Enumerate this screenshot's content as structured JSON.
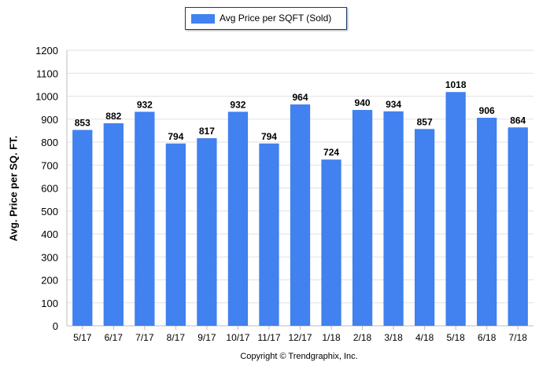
{
  "chart_data": {
    "type": "bar",
    "categories": [
      "5/17",
      "6/17",
      "7/17",
      "8/17",
      "9/17",
      "10/17",
      "11/17",
      "12/17",
      "1/18",
      "2/18",
      "3/18",
      "4/18",
      "5/18",
      "6/18",
      "7/18"
    ],
    "series": [
      {
        "name": "Avg Price per SQFT (Sold)",
        "values": [
          853,
          882,
          932,
          794,
          817,
          932,
          794,
          964,
          724,
          940,
          934,
          857,
          1018,
          906,
          864
        ]
      }
    ],
    "data_labels": [
      "853",
      "882",
      "932",
      "794",
      "817",
      "932",
      "794",
      "964",
      "724",
      "940",
      "934",
      "857",
      "1018",
      "906",
      "864"
    ],
    "ylabel": "Avg. Price per SQ. FT.",
    "xlabel": "",
    "ylim": [
      0,
      1200
    ],
    "yticks": [
      0,
      100,
      200,
      300,
      400,
      500,
      600,
      700,
      800,
      900,
      1000,
      1100,
      1200
    ],
    "grid": true,
    "legend_position": "top-center"
  },
  "footer": {
    "copyright": "Copyright © Trendgraphix, Inc."
  },
  "colors": {
    "bar": "#4181f0",
    "grid": "#e2e2e2",
    "axis": "#bcbcbc"
  }
}
